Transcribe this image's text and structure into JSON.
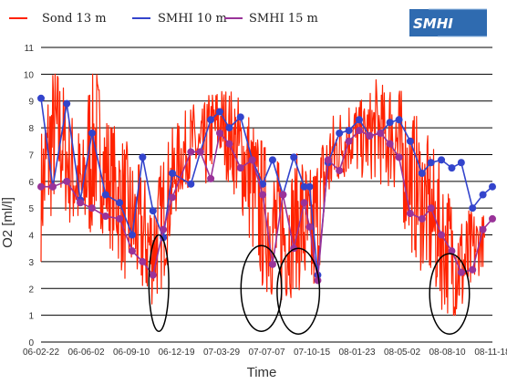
{
  "legend": [
    {
      "label": "Sond 13 m",
      "color": "#ff2200"
    },
    {
      "label": "SMHI 10 m",
      "color": "#3344cc"
    },
    {
      "label": "SMHI 15 m",
      "color": "#993399"
    }
  ],
  "logo": {
    "text": "SMHI",
    "color": "#2f6bb0"
  },
  "chart_data": {
    "type": "line",
    "xlabel": "Time",
    "ylabel": "O2 [ml/l]",
    "ylim": [
      0,
      11
    ],
    "yticks": [
      0,
      1,
      2,
      3,
      4,
      5,
      6,
      7,
      8,
      9,
      10,
      11
    ],
    "xlim": [
      "2006-02-22",
      "2008-11-18"
    ],
    "xtick_labels": [
      "06-02-22",
      "06-06-02",
      "06-09-10",
      "06-12-19",
      "07-03-29",
      "07-07-07",
      "07-10-15",
      "08-01-23",
      "08-05-02",
      "08-08-10",
      "08-11-18"
    ],
    "grid": "horizontal",
    "series": [
      {
        "name": "Sond 13 m",
        "color": "#ff2200",
        "style": "dense-line",
        "x": [
          "2006-02-22",
          "2006-03-10",
          "2006-03-25",
          "2006-04-10",
          "2006-04-25",
          "2006-05-10",
          "2006-05-25",
          "2006-06-10",
          "2006-06-25",
          "2006-07-10",
          "2006-07-25",
          "2006-08-10",
          "2006-08-25",
          "2006-09-10",
          "2006-09-25",
          "2006-10-10",
          "2006-10-25",
          "2006-11-10",
          "2006-11-25",
          "2006-12-10",
          "2006-12-25",
          "2007-01-10",
          "2007-01-25",
          "2007-02-10",
          "2007-02-25",
          "2007-03-10",
          "2007-03-25",
          "2007-04-10",
          "2007-04-25",
          "2007-05-10",
          "2007-05-25",
          "2007-06-10",
          "2007-06-25",
          "2007-07-10",
          "2007-07-25",
          "2007-08-10",
          "2007-08-25",
          "2007-09-10",
          "2007-09-25",
          "2007-10-10",
          "2007-10-25",
          "2007-11-10",
          "2007-11-25",
          "2007-12-10",
          "2007-12-25",
          "2008-01-10",
          "2008-01-25",
          "2008-02-10",
          "2008-02-25",
          "2008-03-10",
          "2008-03-25",
          "2008-04-10",
          "2008-04-25",
          "2008-05-10",
          "2008-05-25",
          "2008-06-10",
          "2008-06-25",
          "2008-07-10",
          "2008-07-25",
          "2008-08-10",
          "2008-08-25",
          "2008-09-10",
          "2008-09-25",
          "2008-10-10",
          "2008-10-25"
        ],
        "mid": [
          5.5,
          7.0,
          7.8,
          7.5,
          6.5,
          6.2,
          5.5,
          7.0,
          7.5,
          6.5,
          6.0,
          5.5,
          5.0,
          4.5,
          4.2,
          3.8,
          3.5,
          4.0,
          5.0,
          6.0,
          6.8,
          7.2,
          7.5,
          7.0,
          7.5,
          8.0,
          8.2,
          7.8,
          7.5,
          7.0,
          6.5,
          5.5,
          4.8,
          4.5,
          4.2,
          4.0,
          4.0,
          4.5,
          4.5,
          3.5,
          4.5,
          6.0,
          6.8,
          7.2,
          7.5,
          7.8,
          7.6,
          7.5,
          7.8,
          8.0,
          7.5,
          8.0,
          7.2,
          6.5,
          6.0,
          5.5,
          5.0,
          4.5,
          4.0,
          3.5,
          3.2,
          2.8,
          3.0,
          3.5,
          3.8
        ],
        "range": [
          2.5,
          3.0,
          2.8,
          2.5,
          2.2,
          2.5,
          2.0,
          3.5,
          3.0,
          2.5,
          2.5,
          2.5,
          2.8,
          2.5,
          2.5,
          2.5,
          2.2,
          2.5,
          2.5,
          2.0,
          1.5,
          1.5,
          1.5,
          1.5,
          1.8,
          1.5,
          1.5,
          1.8,
          2.0,
          2.2,
          2.5,
          2.8,
          3.0,
          2.8,
          2.8,
          2.8,
          2.5,
          2.5,
          3.0,
          3.0,
          2.8,
          2.0,
          1.8,
          1.5,
          1.5,
          1.5,
          1.5,
          1.5,
          1.8,
          2.0,
          2.0,
          2.2,
          2.5,
          2.5,
          2.8,
          2.8,
          2.8,
          2.8,
          2.8,
          2.5,
          2.5,
          2.2,
          2.0,
          1.5,
          1.0
        ]
      },
      {
        "name": "SMHI 10 m",
        "color": "#3344cc",
        "x": [
          "2006-02-22",
          "2006-03-20",
          "2006-04-20",
          "2006-05-20",
          "2006-06-15",
          "2006-07-15",
          "2006-08-15",
          "2006-09-12",
          "2006-10-05",
          "2006-10-28",
          "2006-11-20",
          "2006-12-10",
          "2007-01-20",
          "2007-02-10",
          "2007-03-05",
          "2007-03-25",
          "2007-04-15",
          "2007-05-10",
          "2007-06-05",
          "2007-06-28",
          "2007-07-20",
          "2007-08-12",
          "2007-09-05",
          "2007-09-28",
          "2007-10-10",
          "2007-10-28",
          "2007-11-20",
          "2007-12-15",
          "2008-01-05",
          "2008-01-28",
          "2008-02-20",
          "2008-03-15",
          "2008-04-05",
          "2008-04-25",
          "2008-05-20",
          "2008-06-15",
          "2008-07-05",
          "2008-07-28",
          "2008-08-20",
          "2008-09-10",
          "2008-10-05",
          "2008-10-28",
          "2008-11-18"
        ],
        "y": [
          9.1,
          5.8,
          8.9,
          5.3,
          7.8,
          5.5,
          5.2,
          4.0,
          6.9,
          4.9,
          3.9,
          6.3,
          5.9,
          7.1,
          8.3,
          8.6,
          8.0,
          8.4,
          6.8,
          5.9,
          6.8,
          5.5,
          6.9,
          5.8,
          5.8,
          2.5,
          6.7,
          7.8,
          7.9,
          8.3,
          7.7,
          7.8,
          8.2,
          8.3,
          7.5,
          6.3,
          6.7,
          6.8,
          6.5,
          6.7,
          5.0,
          5.5,
          5.8
        ]
      },
      {
        "name": "SMHI 15 m",
        "color": "#993399",
        "x": [
          "2006-02-22",
          "2006-03-20",
          "2006-04-20",
          "2006-05-20",
          "2006-06-15",
          "2006-07-15",
          "2006-08-15",
          "2006-09-12",
          "2006-10-05",
          "2006-10-28",
          "2006-11-20",
          "2006-12-10",
          "2007-01-20",
          "2007-02-10",
          "2007-03-05",
          "2007-03-25",
          "2007-04-15",
          "2007-05-10",
          "2007-06-05",
          "2007-06-28",
          "2007-07-20",
          "2007-08-12",
          "2007-09-05",
          "2007-09-28",
          "2007-10-10",
          "2007-10-28",
          "2007-11-20",
          "2007-12-15",
          "2008-01-05",
          "2008-01-28",
          "2008-02-20",
          "2008-03-15",
          "2008-04-05",
          "2008-04-25",
          "2008-05-20",
          "2008-06-15",
          "2008-07-05",
          "2008-07-28",
          "2008-08-20",
          "2008-09-10",
          "2008-10-05",
          "2008-10-28",
          "2008-11-18"
        ],
        "y": [
          5.8,
          5.8,
          6.0,
          5.2,
          5.0,
          4.7,
          4.6,
          3.4,
          3.0,
          2.5,
          4.2,
          5.4,
          7.1,
          7.1,
          6.1,
          7.8,
          7.4,
          6.5,
          6.8,
          5.5,
          2.9,
          5.5,
          3.5,
          5.2,
          4.3,
          2.3,
          6.8,
          6.4,
          7.5,
          7.9,
          7.7,
          7.8,
          7.4,
          6.9,
          4.8,
          4.6,
          5.0,
          4.0,
          3.4,
          2.6,
          2.7,
          4.2,
          4.6
        ]
      }
    ],
    "annotations": [
      {
        "type": "ellipse",
        "cx": "2006-11-10",
        "cy": 2.2,
        "rx_days": 22,
        "ry": 1.8
      },
      {
        "type": "ellipse",
        "cx": "2007-06-25",
        "cy": 2.0,
        "rx_days": 45,
        "ry": 1.6
      },
      {
        "type": "ellipse",
        "cx": "2007-09-15",
        "cy": 1.9,
        "rx_days": 47,
        "ry": 1.6
      },
      {
        "type": "ellipse",
        "cx": "2008-08-15",
        "cy": 1.8,
        "rx_days": 44,
        "ry": 1.5
      }
    ]
  }
}
